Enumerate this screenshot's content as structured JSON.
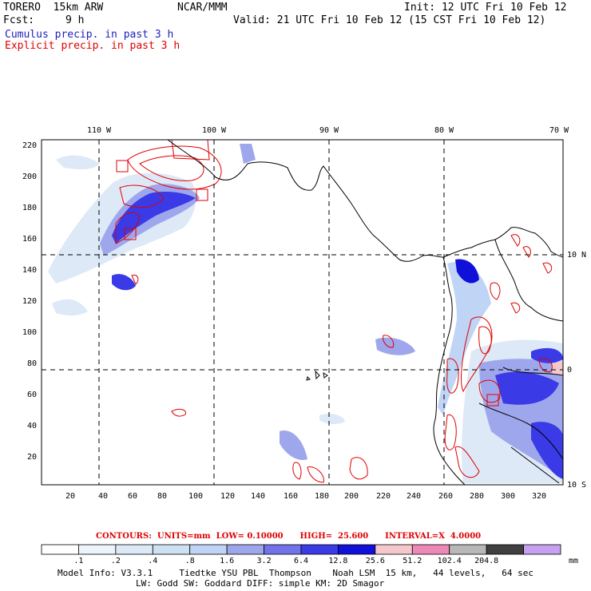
{
  "header": {
    "model": "TORERO  15km ARW",
    "org": "NCAR/MMM",
    "init": "Init: 12 UTC Fri 10 Feb 12",
    "fcst_label": "Fcst:",
    "fcst_value": "9 h",
    "valid": "Valid: 21 UTC Fri 10 Feb 12 (15 CST Fri 10 Feb 12)",
    "legend_cumulus": "Cumulus precip. in past 3 h",
    "legend_explicit": "Explicit precip. in past 3 h"
  },
  "axes": {
    "top_lon_labels": [
      "110 W",
      "100 W",
      "90 W",
      "80 W",
      "70 W"
    ],
    "left_ticks": [
      "220",
      "200",
      "180",
      "160",
      "140",
      "120",
      "100",
      "80",
      "60",
      "40",
      "20"
    ],
    "bottom_ticks": [
      "20",
      "40",
      "60",
      "80",
      "100",
      "120",
      "140",
      "160",
      "180",
      "200",
      "220",
      "240",
      "260",
      "280",
      "300",
      "320"
    ],
    "right_lat_labels": [
      "10 N",
      "0",
      "10 S"
    ]
  },
  "contours_text": "CONTOURS:  UNITS=mm  LOW= 0.10000      HIGH=  25.600      INTERVAL=X  4.0000",
  "colorbar": {
    "labels": [
      ".1",
      ".2",
      ".4",
      ".8",
      "1.6",
      "3.2",
      "6.4",
      "12.8",
      "25.6",
      "51.2",
      "102.4",
      "204.8"
    ],
    "units": "mm",
    "colors": [
      "#ffffff",
      "#eef4fb",
      "#dde9f7",
      "#cde1f3",
      "#c0d4f5",
      "#9fa7ec",
      "#7272ea",
      "#3a3ae6",
      "#1010d8",
      "#f4c8cc",
      "#ee88b8",
      "#b8b8b8",
      "#404040",
      "#c8a0f0"
    ]
  },
  "footer": {
    "line1": "Model Info: V3.3.1     Tiedtke YSU PBL  Thompson    Noah LSM  15 km,   44 levels,   64 sec",
    "line2": "LW: Godd SW: Goddard DIFF: simple KM: 2D Smagor"
  },
  "map_colors": {
    "precip_light": "#dde9f7",
    "precip_mid": "#9fa7ec",
    "precip_heavy": "#3a3ae6",
    "contour": "#e00000",
    "coast": "#000000"
  }
}
